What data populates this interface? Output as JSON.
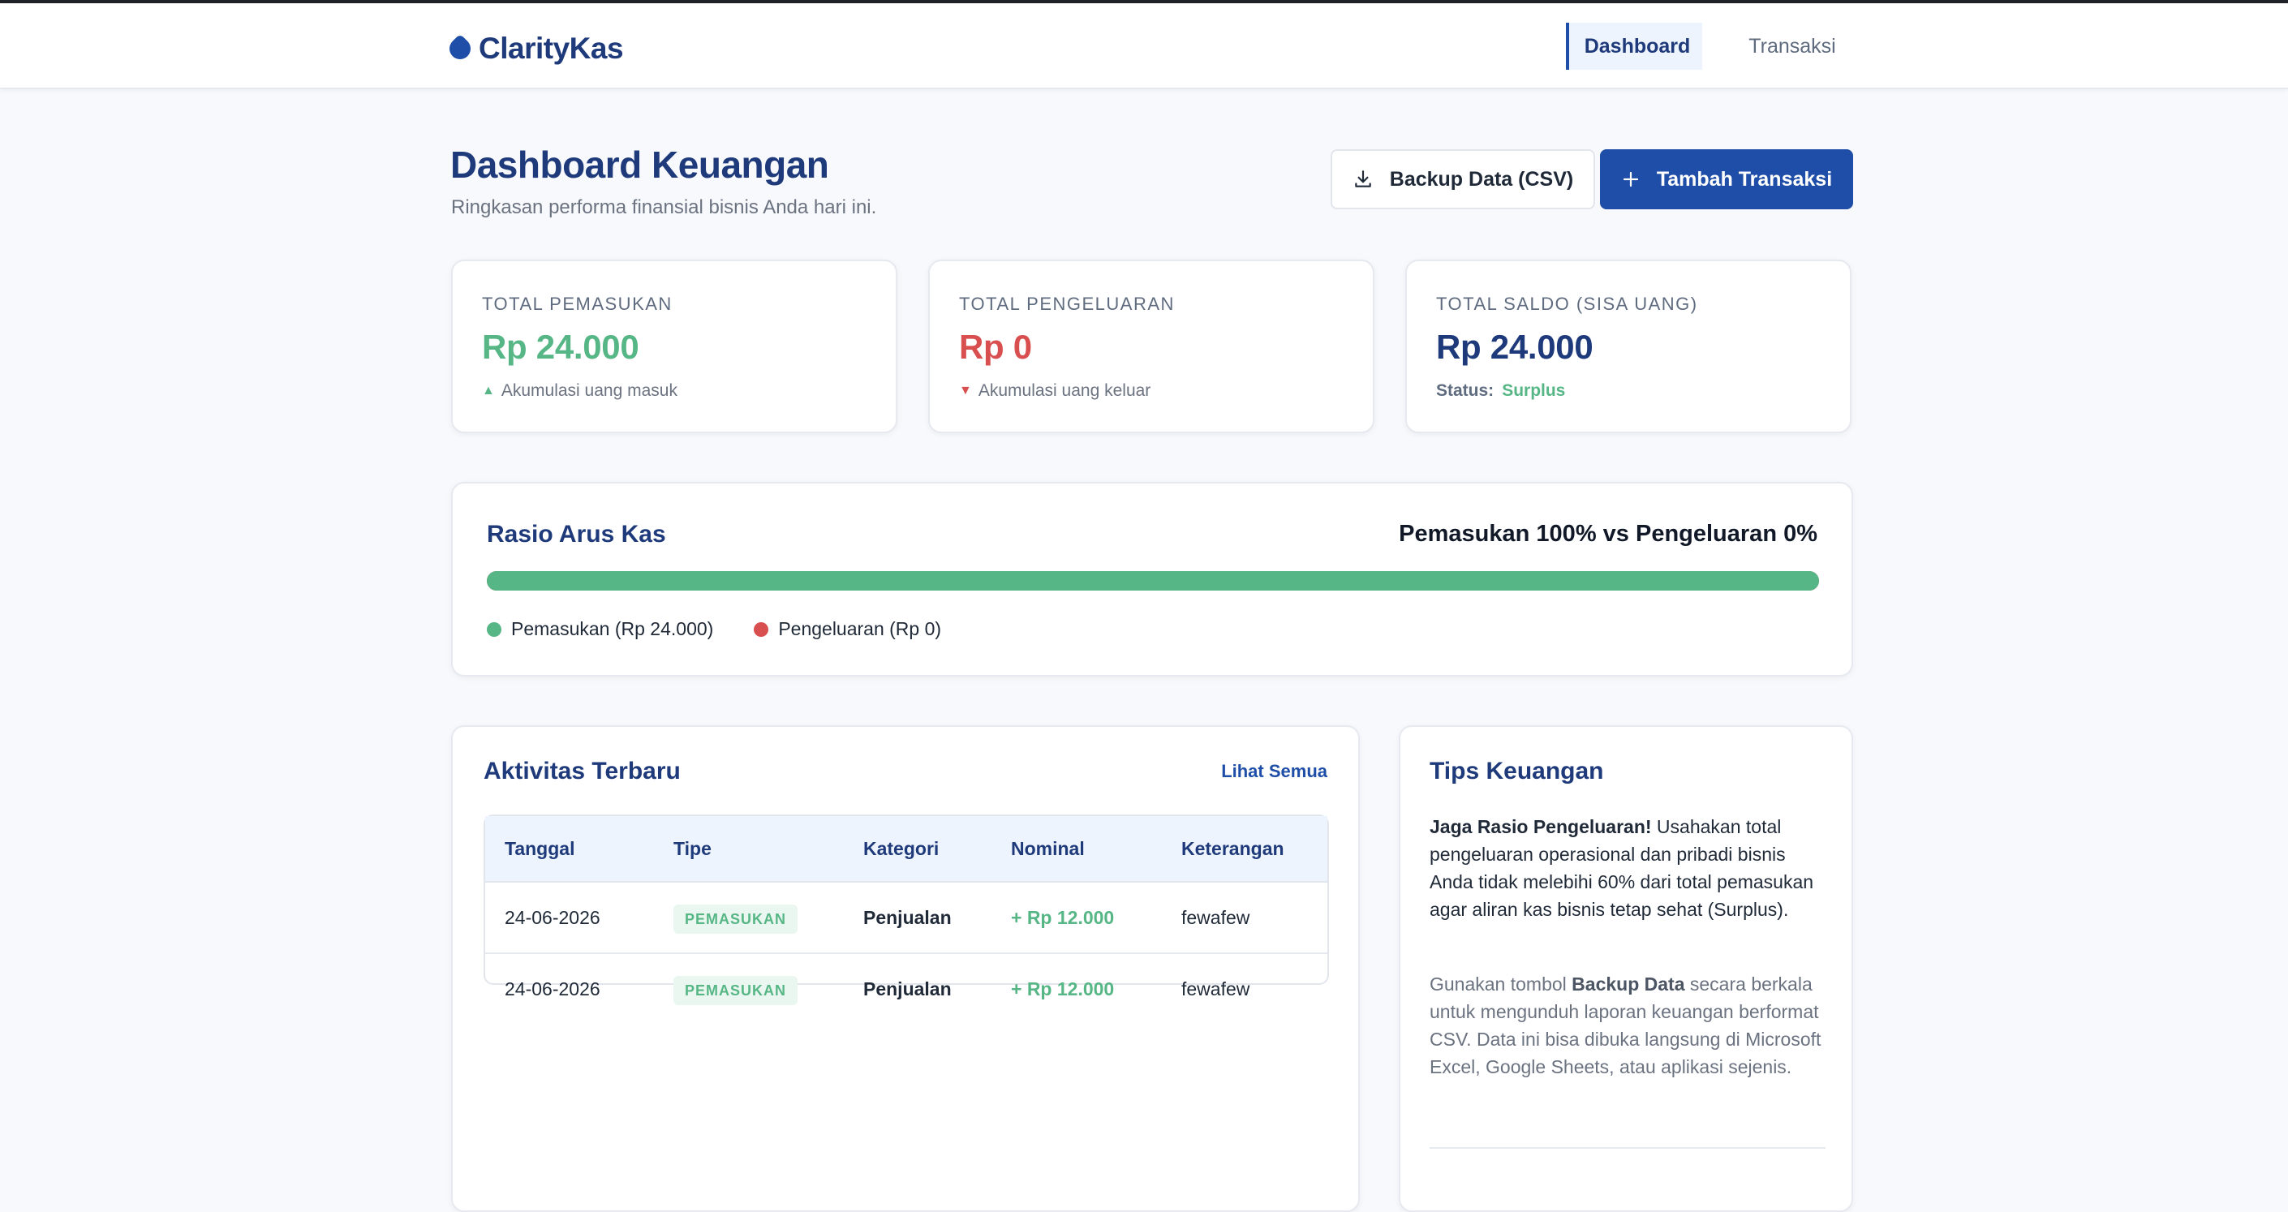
{
  "brand": {
    "name": "ClarityKas",
    "accent": "#1e4ea8"
  },
  "nav": {
    "dashboard": "Dashboard",
    "transaksi": "Transaksi"
  },
  "header": {
    "title": "Dashboard Keuangan",
    "subtitle": "Ringkasan performa finansial bisnis Anda hari ini.",
    "backup_label": "Backup Data (CSV)",
    "add_label": "Tambah Transaksi"
  },
  "stats": {
    "income": {
      "label": "TOTAL PEMASUKAN",
      "value": "Rp 24.000",
      "note": "Akumulasi uang masuk",
      "color": "#56b685"
    },
    "expense": {
      "label": "TOTAL PENGELUARAN",
      "value": "Rp 0",
      "note": "Akumulasi uang keluar",
      "color": "#d94f4f"
    },
    "balance": {
      "label": "TOTAL SALDO (SISA UANG)",
      "value": "Rp 24.000",
      "status_label": "Status:",
      "status_value": "Surplus"
    }
  },
  "ratio": {
    "title": "Rasio Arus Kas",
    "summary": "Pemasukan 100% vs Pengeluaran 0%",
    "income_percent": 100,
    "legend_income": "Pemasukan (Rp 24.000)",
    "legend_expense": "Pengeluaran (Rp 0)"
  },
  "activity": {
    "title": "Aktivitas Terbaru",
    "see_all": "Lihat Semua",
    "columns": [
      "Tanggal",
      "Tipe",
      "Kategori",
      "Nominal",
      "Keterangan"
    ],
    "rows": [
      {
        "date": "24-06-2026",
        "type": "PEMASUKAN",
        "category": "Penjualan",
        "amount": "+ Rp 12.000",
        "note": "fewafew"
      },
      {
        "date": "24-06-2026",
        "type": "PEMASUKAN",
        "category": "Penjualan",
        "amount": "+ Rp 12.000",
        "note": "fewafew"
      }
    ]
  },
  "tips": {
    "title": "Tips Keuangan",
    "p1_bold": "Jaga Rasio Pengeluaran!",
    "p1_rest": " Usahakan total pengeluaran operasional dan pribadi bisnis Anda tidak melebihi 60% dari total pemasukan agar aliran kas bisnis tetap sehat (Surplus).",
    "p2_pre": "Gunakan tombol ",
    "p2_bold": "Backup Data",
    "p2_post": " secara berkala untuk mengunduh laporan keuangan berformat CSV. Data ini bisa dibuka langsung di Microsoft Excel, Google Sheets, atau aplikasi sejenis."
  }
}
